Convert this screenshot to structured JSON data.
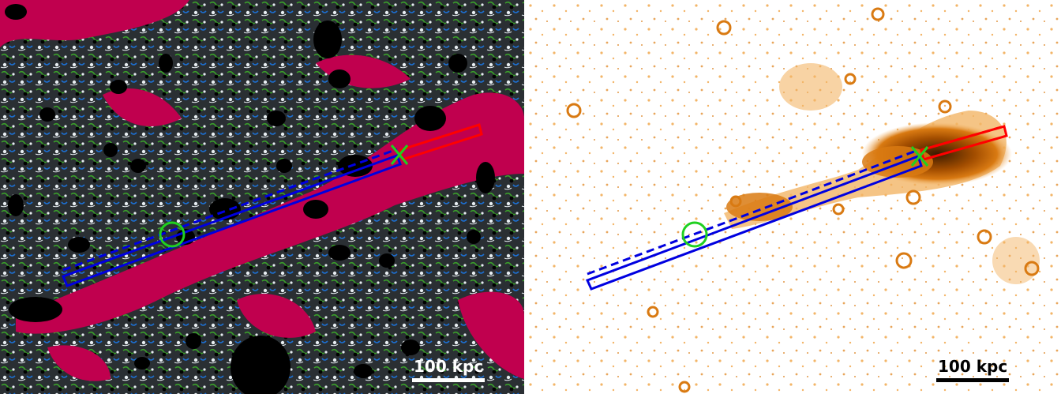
{
  "left_panel": {
    "scalebar_label": "100 kpc",
    "colors": {
      "background": "#2a2f33",
      "tail_emission": "#c0004e",
      "contour_green": "#3aa02a",
      "contour_blue": "#1c6fd1",
      "point_source_mask": "#000000",
      "noise_white": "#e8eef2"
    }
  },
  "right_panel": {
    "scalebar_label": "100 kpc",
    "colors": {
      "background": "#ffffff",
      "emission_light": "#f3b567",
      "emission_mid": "#d97a12",
      "emission_dark": "#3a1a00"
    }
  },
  "overlays": {
    "upstream_region_color": "#ff0000",
    "downstream_region_color": "#0000e0",
    "marker_color": "#20d020",
    "marker_cross": "x-mark",
    "marker_circle": "circle"
  }
}
